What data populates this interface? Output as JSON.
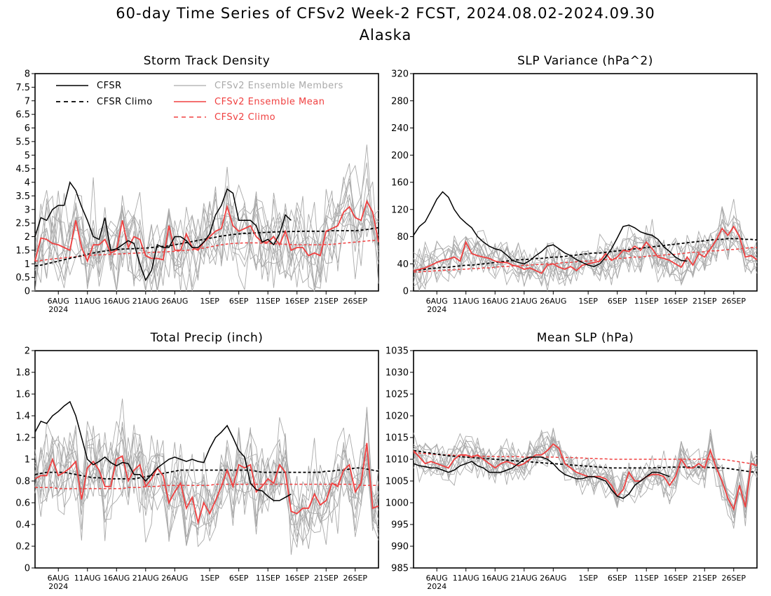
{
  "figure": {
    "title_line1": "60-day Time Series of CFSv2 Week-2 FCST, 2024.08.02-2024.09.30",
    "title_line2": "Alaska"
  },
  "colors": {
    "cfsr": "#000000",
    "cfsr_climo": "#000000",
    "members": "#aaaaaa",
    "ens_mean": "#f04040",
    "cfs_climo": "#f04040"
  },
  "legend": [
    {
      "key": "cfsr",
      "label": "CFSR",
      "style": "solid",
      "color": "#000000"
    },
    {
      "key": "cfsr_climo",
      "label": "CFSR Climo",
      "style": "dashed",
      "color": "#000000"
    },
    {
      "key": "members",
      "label": "CFSv2 Ensemble Members",
      "style": "solid",
      "color": "#aaaaaa"
    },
    {
      "key": "ens_mean",
      "label": "CFSv2 Ensemble Mean",
      "style": "solid",
      "color": "#f04040"
    },
    {
      "key": "cfs_climo",
      "label": "CFSv2 Climo",
      "style": "dashed",
      "color": "#f04040"
    }
  ],
  "xaxis": {
    "n_days": 60,
    "ticks": [
      {
        "day": 4,
        "label": "6AUG",
        "sub": "2024"
      },
      {
        "day": 9,
        "label": "11AUG"
      },
      {
        "day": 14,
        "label": "16AUG"
      },
      {
        "day": 19,
        "label": "21AUG"
      },
      {
        "day": 24,
        "label": "26AUG"
      },
      {
        "day": 30,
        "label": "1SEP"
      },
      {
        "day": 35,
        "label": "6SEP"
      },
      {
        "day": 40,
        "label": "11SEP"
      },
      {
        "day": 45,
        "label": "16SEP"
      },
      {
        "day": 50,
        "label": "21SEP"
      },
      {
        "day": 55,
        "label": "26SEP"
      }
    ]
  },
  "chart_data": [
    {
      "type": "line",
      "title": "Storm Track Density",
      "ylim": [
        0,
        8
      ],
      "yticks": [
        "0",
        "0.5",
        "1",
        "1.5",
        "2",
        "2.5",
        "3",
        "3.5",
        "4",
        "4.5",
        "5",
        "5.5",
        "6",
        "6.5",
        "7",
        "7.5",
        "8"
      ],
      "ytick_values": [
        0,
        0.5,
        1,
        1.5,
        2,
        2.5,
        3,
        3.5,
        4,
        4.5,
        5,
        5.5,
        6,
        6.5,
        7,
        7.5,
        8
      ],
      "series": {
        "cfsr": [
          2.0,
          2.7,
          2.6,
          3.0,
          3.15,
          3.15,
          4.0,
          3.7,
          3.1,
          2.6,
          2.0,
          1.9,
          2.7,
          1.5,
          1.55,
          1.7,
          1.85,
          1.75,
          1.0,
          0.4,
          0.75,
          1.7,
          1.6,
          1.6,
          2.0,
          2.0,
          1.85,
          1.6,
          1.6,
          1.8,
          2.1,
          2.8,
          3.15,
          3.75,
          3.6,
          2.6,
          2.6,
          2.6,
          2.4,
          1.8,
          1.9,
          1.7,
          2.1,
          2.8,
          2.6,
          null,
          null,
          null,
          null,
          null,
          null,
          null,
          null,
          null,
          null,
          null,
          null,
          null,
          null,
          null
        ],
        "cfsr_climo": [
          0.92,
          0.95,
          1.0,
          1.05,
          1.1,
          1.15,
          1.2,
          1.25,
          1.3,
          1.35,
          1.4,
          1.44,
          1.47,
          1.5,
          1.52,
          1.54,
          1.55,
          1.56,
          1.57,
          1.58,
          1.6,
          1.62,
          1.64,
          1.66,
          1.7,
          1.74,
          1.78,
          1.82,
          1.86,
          1.9,
          1.94,
          1.98,
          2.02,
          2.05,
          2.08,
          2.1,
          2.12,
          2.13,
          2.14,
          2.15,
          2.16,
          2.17,
          2.18,
          2.18,
          2.19,
          2.19,
          2.2,
          2.2,
          2.2,
          2.2,
          2.2,
          2.22,
          2.22,
          2.22,
          2.22,
          2.22,
          2.24,
          2.26,
          2.3,
          2.33
        ],
        "ens_mean": [
          1.1,
          1.95,
          1.9,
          1.75,
          1.7,
          1.6,
          1.5,
          2.6,
          1.6,
          1.1,
          1.7,
          1.7,
          1.9,
          1.4,
          1.5,
          2.6,
          1.6,
          2.0,
          1.9,
          1.3,
          1.2,
          1.2,
          1.15,
          2.4,
          1.5,
          1.5,
          2.1,
          1.6,
          1.5,
          1.8,
          2.0,
          2.2,
          2.3,
          3.1,
          2.4,
          2.2,
          2.3,
          2.4,
          2.0,
          1.8,
          1.8,
          2.0,
          1.7,
          2.2,
          1.5,
          1.6,
          1.6,
          1.3,
          1.4,
          1.3,
          2.2,
          2.3,
          2.4,
          2.9,
          3.1,
          2.7,
          2.6,
          3.3,
          2.9,
          1.8
        ],
        "cfs_climo": [
          1.1,
          1.12,
          1.15,
          1.18,
          1.2,
          1.22,
          1.24,
          1.26,
          1.28,
          1.3,
          1.32,
          1.33,
          1.34,
          1.35,
          1.36,
          1.37,
          1.38,
          1.39,
          1.4,
          1.41,
          1.42,
          1.43,
          1.44,
          1.45,
          1.46,
          1.48,
          1.5,
          1.52,
          1.55,
          1.58,
          1.62,
          1.66,
          1.7,
          1.73,
          1.75,
          1.76,
          1.77,
          1.77,
          1.77,
          1.76,
          1.75,
          1.74,
          1.73,
          1.72,
          1.71,
          1.7,
          1.7,
          1.7,
          1.7,
          1.7,
          1.71,
          1.72,
          1.74,
          1.76,
          1.78,
          1.8,
          1.82,
          1.84,
          1.86,
          1.87
        ]
      },
      "members": {
        "count": 12,
        "spread": 0.85
      }
    },
    {
      "type": "line",
      "title": "SLP Variance (hPa^2)",
      "ylim": [
        0,
        320
      ],
      "yticks": [
        "0",
        "40",
        "80",
        "120",
        "160",
        "200",
        "240",
        "280",
        "320"
      ],
      "ytick_values": [
        0,
        40,
        80,
        120,
        160,
        200,
        240,
        280,
        320
      ],
      "series": {
        "cfsr": [
          82,
          95,
          102,
          118,
          135,
          146,
          138,
          120,
          108,
          100,
          93,
          80,
          72,
          66,
          62,
          60,
          53,
          45,
          42,
          40,
          45,
          52,
          58,
          66,
          68,
          62,
          56,
          52,
          46,
          42,
          38,
          36,
          40,
          50,
          62,
          78,
          95,
          97,
          93,
          87,
          84,
          82,
          76,
          65,
          58,
          50,
          45,
          44,
          null,
          null,
          null,
          null,
          null,
          null,
          null,
          null,
          null,
          null,
          null,
          null
        ],
        "cfsr_climo": [
          30,
          31,
          32,
          33,
          34,
          35,
          35,
          36,
          37,
          38,
          38,
          39,
          40,
          41,
          42,
          43,
          44,
          45,
          46,
          46,
          47,
          48,
          48,
          49,
          50,
          50,
          51,
          52,
          53,
          54,
          55,
          56,
          56,
          57,
          58,
          59,
          60,
          61,
          62,
          63,
          64,
          65,
          66,
          67,
          68,
          69,
          70,
          71,
          72,
          73,
          74,
          75,
          76,
          76,
          77,
          77,
          77,
          76,
          76,
          75
        ],
        "ens_mean": [
          30,
          32,
          34,
          38,
          42,
          45,
          47,
          50,
          44,
          72,
          55,
          52,
          50,
          48,
          44,
          42,
          42,
          38,
          36,
          32,
          34,
          30,
          26,
          38,
          40,
          35,
          32,
          36,
          30,
          38,
          40,
          42,
          44,
          55,
          45,
          50,
          60,
          58,
          66,
          60,
          72,
          62,
          50,
          48,
          45,
          40,
          35,
          50,
          38,
          55,
          50,
          62,
          75,
          92,
          82,
          95,
          80,
          50,
          52,
          46
        ],
        "cfs_climo": [
          28,
          28,
          29,
          29,
          30,
          30,
          31,
          31,
          32,
          32,
          33,
          33,
          34,
          34,
          35,
          36,
          36,
          37,
          37,
          38,
          38,
          39,
          39,
          40,
          40,
          41,
          42,
          42,
          43,
          44,
          44,
          45,
          46,
          46,
          47,
          48,
          48,
          49,
          50,
          50,
          51,
          52,
          52,
          53,
          54,
          54,
          55,
          56,
          57,
          57,
          58,
          59,
          59,
          60,
          61,
          61,
          62,
          63,
          64,
          64
        ]
      },
      "members": {
        "count": 12,
        "spread": 16
      }
    },
    {
      "type": "line",
      "title": "Total Precip (inch)",
      "ylim": [
        0,
        2
      ],
      "yticks": [
        "0",
        "0.2",
        "0.4",
        "0.6",
        "0.8",
        "1",
        "1.2",
        "1.4",
        "1.6",
        "1.8",
        "2"
      ],
      "ytick_values": [
        0,
        0.2,
        0.4,
        0.6,
        0.8,
        1.0,
        1.2,
        1.4,
        1.6,
        1.8,
        2.0
      ],
      "series": {
        "cfsr": [
          1.25,
          1.35,
          1.33,
          1.4,
          1.44,
          1.49,
          1.53,
          1.4,
          1.2,
          1.0,
          0.95,
          0.98,
          1.02,
          0.97,
          0.94,
          0.97,
          0.96,
          0.86,
          0.86,
          0.8,
          0.86,
          0.92,
          0.96,
          1.0,
          1.02,
          1.0,
          0.98,
          1.0,
          0.98,
          0.97,
          1.1,
          1.2,
          1.25,
          1.31,
          1.2,
          1.08,
          1.02,
          0.78,
          0.72,
          0.71,
          0.66,
          0.62,
          0.62,
          0.65,
          0.68,
          null,
          null,
          null,
          null,
          null,
          null,
          null,
          null,
          null,
          null,
          null,
          null,
          null,
          null,
          null
        ],
        "cfsr_climo": [
          0.86,
          0.87,
          0.88,
          0.88,
          0.88,
          0.88,
          0.87,
          0.86,
          0.85,
          0.84,
          0.83,
          0.83,
          0.82,
          0.82,
          0.82,
          0.82,
          0.82,
          0.82,
          0.83,
          0.84,
          0.85,
          0.86,
          0.87,
          0.88,
          0.89,
          0.9,
          0.9,
          0.9,
          0.9,
          0.9,
          0.9,
          0.9,
          0.9,
          0.9,
          0.9,
          0.9,
          0.9,
          0.9,
          0.89,
          0.88,
          0.88,
          0.88,
          0.88,
          0.88,
          0.88,
          0.88,
          0.88,
          0.88,
          0.88,
          0.88,
          0.89,
          0.89,
          0.9,
          0.9,
          0.91,
          0.92,
          0.92,
          0.91,
          0.9,
          0.89
        ],
        "ens_mean": [
          0.82,
          0.85,
          0.85,
          1.0,
          0.85,
          0.88,
          0.92,
          0.98,
          0.63,
          0.92,
          0.98,
          0.9,
          0.75,
          0.75,
          1.0,
          1.03,
          0.8,
          0.9,
          0.95,
          0.75,
          0.82,
          0.92,
          0.85,
          0.6,
          0.7,
          0.78,
          0.55,
          0.65,
          0.42,
          0.6,
          0.5,
          0.62,
          0.75,
          0.9,
          0.75,
          0.95,
          0.92,
          0.95,
          0.7,
          0.75,
          0.82,
          0.78,
          0.95,
          0.88,
          0.52,
          0.5,
          0.55,
          0.55,
          0.68,
          0.58,
          0.62,
          0.78,
          0.75,
          0.9,
          0.95,
          0.7,
          0.78,
          1.15,
          0.55,
          0.57
        ],
        "cfs_climo": [
          0.74,
          0.74,
          0.74,
          0.74,
          0.73,
          0.73,
          0.73,
          0.73,
          0.73,
          0.73,
          0.73,
          0.73,
          0.73,
          0.73,
          0.73,
          0.73,
          0.74,
          0.74,
          0.74,
          0.75,
          0.75,
          0.75,
          0.76,
          0.76,
          0.76,
          0.76,
          0.76,
          0.76,
          0.76,
          0.76,
          0.76,
          0.77,
          0.77,
          0.77,
          0.77,
          0.77,
          0.77,
          0.77,
          0.77,
          0.77,
          0.77,
          0.77,
          0.77,
          0.77,
          0.77,
          0.77,
          0.77,
          0.77,
          0.77,
          0.77,
          0.77,
          0.77,
          0.77,
          0.77,
          0.77,
          0.77,
          0.76,
          0.76,
          0.76,
          0.76
        ]
      },
      "members": {
        "count": 12,
        "spread": 0.2
      }
    },
    {
      "type": "line",
      "title": "Mean SLP (hPa)",
      "ylim": [
        985,
        1035
      ],
      "yticks": [
        "985",
        "990",
        "995",
        "1000",
        "1005",
        "1010",
        "1015",
        "1020",
        "1025",
        "1030",
        "1035"
      ],
      "ytick_values": [
        985,
        990,
        995,
        1000,
        1005,
        1010,
        1015,
        1020,
        1025,
        1030,
        1035
      ],
      "series": {
        "cfsr": [
          1009,
          1008.5,
          1008.3,
          1008,
          1008,
          1007.5,
          1007,
          1007.5,
          1008.5,
          1009,
          1009.5,
          1008.5,
          1008,
          1007,
          1007,
          1007,
          1007.5,
          1008,
          1009,
          1010,
          1010.5,
          1010.5,
          1010.5,
          1010,
          1009,
          1007.5,
          1006.5,
          1006,
          1005.5,
          1005.5,
          1006,
          1006,
          1005.5,
          1005,
          1003,
          1001.5,
          1001,
          1002,
          1004,
          1005,
          1006,
          1007,
          1007,
          1006.5,
          1006,
          null,
          null,
          null,
          null,
          null,
          null,
          null,
          null,
          null,
          null,
          null,
          null,
          null,
          null,
          null
        ],
        "cfsr_climo": [
          1012,
          1011.8,
          1011.6,
          1011.4,
          1011.2,
          1011,
          1010.8,
          1010.7,
          1010.6,
          1010.5,
          1010.4,
          1010.3,
          1010.2,
          1010.1,
          1010,
          1009.9,
          1009.8,
          1009.7,
          1009.6,
          1009.5,
          1009.4,
          1009.3,
          1009.2,
          1009.1,
          1009,
          1008.9,
          1008.8,
          1008.7,
          1008.6,
          1008.5,
          1008.4,
          1008.3,
          1008.2,
          1008.1,
          1008,
          1008,
          1008,
          1008,
          1008,
          1008,
          1008,
          1008,
          1008.1,
          1008.1,
          1008.2,
          1008.2,
          1008.2,
          1008.2,
          1008.2,
          1008.2,
          1008.2,
          1008.1,
          1008,
          1008,
          1007.9,
          1007.7,
          1007.5,
          1007.3,
          1007.1,
          1007
        ],
        "ens_mean": [
          1012,
          1010.5,
          1009,
          1009.5,
          1009,
          1008.5,
          1008,
          1010,
          1011,
          1011,
          1010.5,
          1011,
          1010,
          1009,
          1008,
          1009,
          1009.5,
          1009,
          1008.5,
          1009,
          1010,
          1011,
          1011,
          1012,
          1013.5,
          1012.5,
          1009,
          1008,
          1007,
          1006.5,
          1006,
          1006,
          1006,
          1005.5,
          1004,
          1001.5,
          1003,
          1007,
          1005,
          1005,
          1006,
          1006.5,
          1006.5,
          1006,
          1004,
          1006,
          1010,
          1008,
          1008,
          1009,
          1008,
          1012,
          1008,
          1005,
          1001,
          998.5,
          1004,
          999,
          1009,
          1008.5
        ],
        "cfs_climo": [
          1011.5,
          1011.4,
          1011.3,
          1011.2,
          1011.1,
          1011,
          1011,
          1010.9,
          1010.9,
          1010.8,
          1010.8,
          1010.7,
          1010.7,
          1010.7,
          1010.6,
          1010.6,
          1010.6,
          1010.6,
          1010.6,
          1010.5,
          1010.5,
          1010.5,
          1010.5,
          1010.5,
          1010.5,
          1010.4,
          1010.4,
          1010.4,
          1010.3,
          1010.3,
          1010.2,
          1010.2,
          1010.1,
          1010.1,
          1010,
          1010,
          1010,
          1010,
          1010,
          1010,
          1010,
          1010,
          1010,
          1010,
          1010,
          1010,
          1010,
          1010,
          1010,
          1010,
          1010,
          1010,
          1010,
          1010,
          1009.8,
          1009.6,
          1009.4,
          1009.2,
          1009,
          1008.8
        ]
      },
      "members": {
        "count": 12,
        "spread": 2.2
      }
    }
  ]
}
